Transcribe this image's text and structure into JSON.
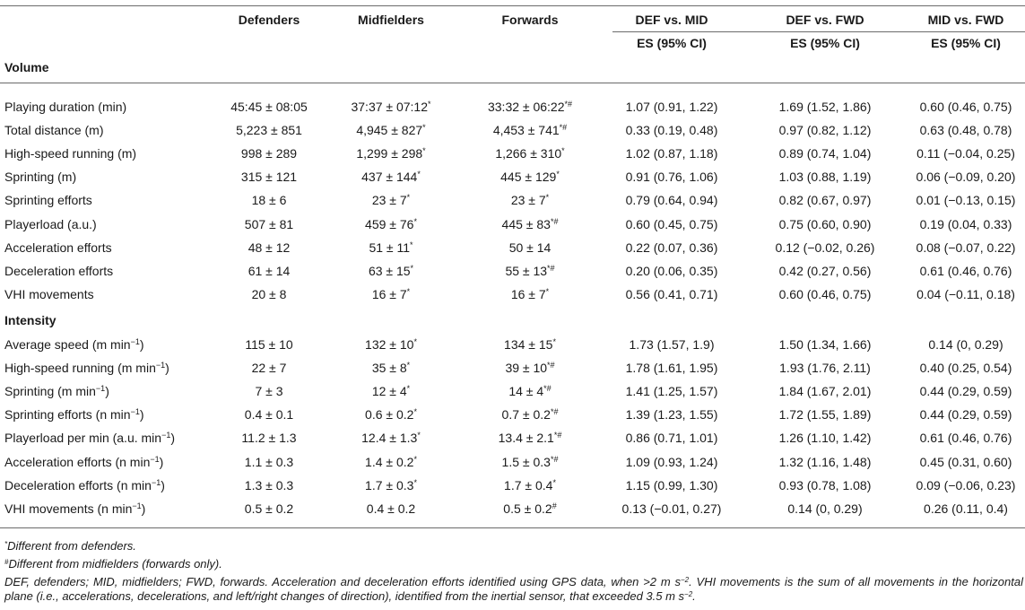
{
  "headers": {
    "defenders": "Defenders",
    "midfielders": "Midfielders",
    "forwards": "Forwards",
    "def_vs_mid": "DEF vs. MID",
    "def_vs_fwd": "DEF vs. FWD",
    "mid_vs_fwd": "MID vs. FWD",
    "es_label": "ES (95% CI)"
  },
  "sections": {
    "volume": "Volume",
    "intensity": "Intensity"
  },
  "volume_rows": [
    {
      "label": "Playing duration (min)",
      "def": "45:45 ± 08:05",
      "mid": "37:37 ± 07:12",
      "mid_sup": "*",
      "fwd": "33:32 ± 06:22",
      "fwd_sup": "*#",
      "dm": "1.07 (0.91, 1.22)",
      "df": "1.69 (1.52, 1.86)",
      "mf": "0.60 (0.46, 0.75)"
    },
    {
      "label": "Total distance (m)",
      "def": "5,223 ± 851",
      "mid": "4,945 ± 827",
      "mid_sup": "*",
      "fwd": "4,453 ± 741",
      "fwd_sup": "*#",
      "dm": "0.33 (0.19, 0.48)",
      "df": "0.97 (0.82, 1.12)",
      "mf": "0.63 (0.48, 0.78)"
    },
    {
      "label": "High-speed running (m)",
      "def": "998 ± 289",
      "mid": "1,299 ± 298",
      "mid_sup": "*",
      "fwd": "1,266 ± 310",
      "fwd_sup": "*",
      "dm": "1.02 (0.87, 1.18)",
      "df": "0.89 (0.74, 1.04)",
      "mf": "0.11 (−0.04, 0.25)"
    },
    {
      "label": "Sprinting (m)",
      "def": "315 ± 121",
      "mid": "437 ± 144",
      "mid_sup": "*",
      "fwd": "445 ± 129",
      "fwd_sup": "*",
      "dm": "0.91 (0.76, 1.06)",
      "df": "1.03 (0.88, 1.19)",
      "mf": "0.06 (−0.09, 0.20)"
    },
    {
      "label": "Sprinting efforts",
      "def": "18 ± 6",
      "mid": "23 ± 7",
      "mid_sup": "*",
      "fwd": "23 ± 7",
      "fwd_sup": "*",
      "dm": "0.79 (0.64, 0.94)",
      "df": "0.82 (0.67, 0.97)",
      "mf": "0.01 (−0.13, 0.15)"
    },
    {
      "label": "Playerload (a.u.)",
      "def": "507 ± 81",
      "mid": "459 ± 76",
      "mid_sup": "*",
      "fwd": "445 ± 83",
      "fwd_sup": "*#",
      "dm": "0.60 (0.45, 0.75)",
      "df": "0.75 (0.60, 0.90)",
      "mf": "0.19 (0.04, 0.33)"
    },
    {
      "label": "Acceleration efforts",
      "def": "48 ± 12",
      "mid": "51 ± 11",
      "mid_sup": "*",
      "fwd": "50 ± 14",
      "fwd_sup": "",
      "dm": "0.22 (0.07, 0.36)",
      "df": "0.12 (−0.02, 0.26)",
      "mf": "0.08 (−0.07, 0.22)"
    },
    {
      "label": "Deceleration efforts",
      "def": "61 ± 14",
      "mid": "63 ± 15",
      "mid_sup": "*",
      "fwd": "55 ± 13",
      "fwd_sup": "*#",
      "dm": "0.20 (0.06, 0.35)",
      "df": "0.42 (0.27, 0.56)",
      "mf": "0.61 (0.46, 0.76)"
    },
    {
      "label": "VHI movements",
      "def": "20 ± 8",
      "mid": "16 ± 7",
      "mid_sup": "*",
      "fwd": "16 ± 7",
      "fwd_sup": "*",
      "dm": "0.56 (0.41, 0.71)",
      "df": "0.60 (0.46, 0.75)",
      "mf": "0.04 (−0.11, 0.18)"
    }
  ],
  "intensity_rows": [
    {
      "label": "Average speed (m min",
      "label_sup": "−1",
      "label_end": ")",
      "def": "115 ± 10",
      "mid": "132 ± 10",
      "mid_sup": "*",
      "fwd": "134 ± 15",
      "fwd_sup": "*",
      "dm": "1.73 (1.57, 1.9)",
      "df": "1.50 (1.34, 1.66)",
      "mf": "0.14 (0, 0.29)"
    },
    {
      "label": "High-speed running (m min",
      "label_sup": "−1",
      "label_end": ")",
      "def": "22 ± 7",
      "mid": "35 ± 8",
      "mid_sup": "*",
      "fwd": "39 ± 10",
      "fwd_sup": "*#",
      "dm": "1.78 (1.61, 1.95)",
      "df": "1.93 (1.76, 2.11)",
      "mf": "0.40 (0.25, 0.54)"
    },
    {
      "label": "Sprinting (m min",
      "label_sup": "−1",
      "label_end": ")",
      "def": "7 ± 3",
      "mid": "12 ± 4",
      "mid_sup": "*",
      "fwd": "14 ± 4",
      "fwd_sup": "*#",
      "dm": "1.41 (1.25, 1.57)",
      "df": "1.84 (1.67, 2.01)",
      "mf": "0.44 (0.29, 0.59)"
    },
    {
      "label": "Sprinting efforts (n min",
      "label_sup": "−1",
      "label_end": ")",
      "def": "0.4 ± 0.1",
      "mid": "0.6 ± 0.2",
      "mid_sup": "*",
      "fwd": "0.7 ± 0.2",
      "fwd_sup": "*#",
      "dm": "1.39 (1.23, 1.55)",
      "df": "1.72 (1.55, 1.89)",
      "mf": "0.44 (0.29, 0.59)"
    },
    {
      "label": "Playerload per min (a.u. min",
      "label_sup": "−1",
      "label_end": ")",
      "def": "11.2 ± 1.3",
      "mid": "12.4 ± 1.3",
      "mid_sup": "*",
      "fwd": "13.4 ± 2.1",
      "fwd_sup": "*#",
      "dm": "0.86 (0.71, 1.01)",
      "df": "1.26 (1.10, 1.42)",
      "mf": "0.61 (0.46, 0.76)"
    },
    {
      "label": "Acceleration efforts (n min",
      "label_sup": "−1",
      "label_end": ")",
      "def": "1.1 ± 0.3",
      "mid": "1.4 ± 0.2",
      "mid_sup": "*",
      "fwd": "1.5 ± 0.3",
      "fwd_sup": "*#",
      "dm": "1.09 (0.93, 1.24)",
      "df": "1.32 (1.16, 1.48)",
      "mf": "0.45 (0.31, 0.60)"
    },
    {
      "label": "Deceleration efforts (n min",
      "label_sup": "−1",
      "label_end": ")",
      "def": "1.3 ± 0.3",
      "mid": "1.7 ± 0.3",
      "mid_sup": "*",
      "fwd": "1.7 ± 0.4",
      "fwd_sup": "*",
      "dm": "1.15 (0.99, 1.30)",
      "df": "0.93 (0.78, 1.08)",
      "mf": "0.09 (−0.06, 0.23)"
    },
    {
      "label": "VHI movements (n min",
      "label_sup": "−1",
      "label_end": ")",
      "def": "0.5 ± 0.2",
      "mid": "0.4 ± 0.2",
      "mid_sup": "",
      "fwd": "0.5 ± 0.2",
      "fwd_sup": "#",
      "dm": "0.13 (−0.01, 0.27)",
      "df": "0.14 (0, 0.29)",
      "mf": "0.26 (0.11, 0.4)"
    }
  ],
  "footnotes": {
    "f1_mark": "*",
    "f1_text": "Different from defenders.",
    "f2_mark": "#",
    "f2_text": "Different from midfielders (forwards only).",
    "f3_a": "DEF, defenders; MID, midfielders; FWD, forwards. Acceleration and deceleration efforts identified using GPS data, when >2 m s",
    "f3_sup1": "−2",
    "f3_b": ". VHI movements is the sum of all movements in the horizontal plane (i.e., accelerations, decelerations, and left/right changes of direction), identified from the inertial sensor, that exceeded 3.5 m s",
    "f3_sup2": "−2",
    "f3_c": "."
  }
}
